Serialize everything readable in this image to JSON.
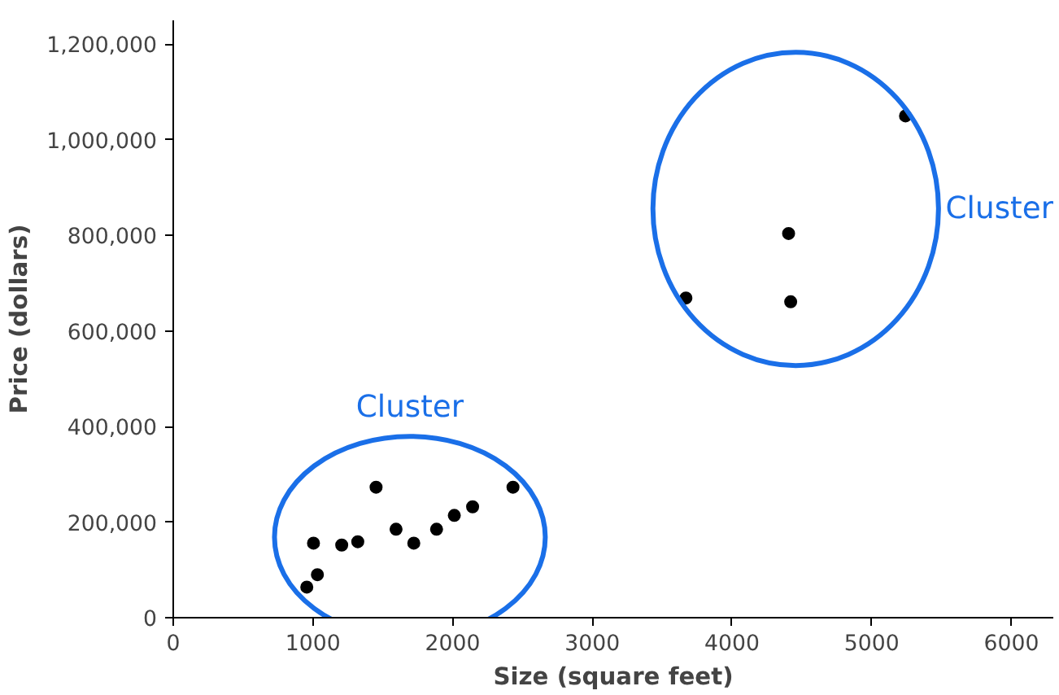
{
  "chart_data": {
    "type": "scatter",
    "xlabel": "Size (square feet)",
    "ylabel": "Price (dollars)",
    "x": [
      956,
      1004,
      1032,
      1206,
      1321,
      1452,
      1595,
      1722,
      1885,
      2012,
      2143,
      2432,
      3670,
      4405,
      4420,
      5242
    ],
    "values": [
      64000,
      156000,
      90000,
      152000,
      159000,
      273000,
      185000,
      156000,
      185000,
      214000,
      232000,
      273000,
      669000,
      804000,
      661000,
      1050000
    ],
    "color": "#000000",
    "marker": "circle",
    "grid": false,
    "xlim": [
      0,
      6300
    ],
    "ylim": [
      0,
      1250000
    ],
    "xticks": [
      0,
      1000,
      2000,
      3000,
      4000,
      5000,
      6000
    ],
    "yticks": [
      {
        "value": 0,
        "label": "0"
      },
      {
        "value": 200000,
        "label": "200,000"
      },
      {
        "value": 400000,
        "label": "400,000"
      },
      {
        "value": 600000,
        "label": "600,000"
      },
      {
        "value": 800000,
        "label": "800,000"
      },
      {
        "value": 1000000,
        "label": "1,000,000"
      },
      {
        "value": 1200000,
        "label": "1,200,000"
      }
    ],
    "annotations": [
      "Cluster",
      "Cluster"
    ]
  }
}
